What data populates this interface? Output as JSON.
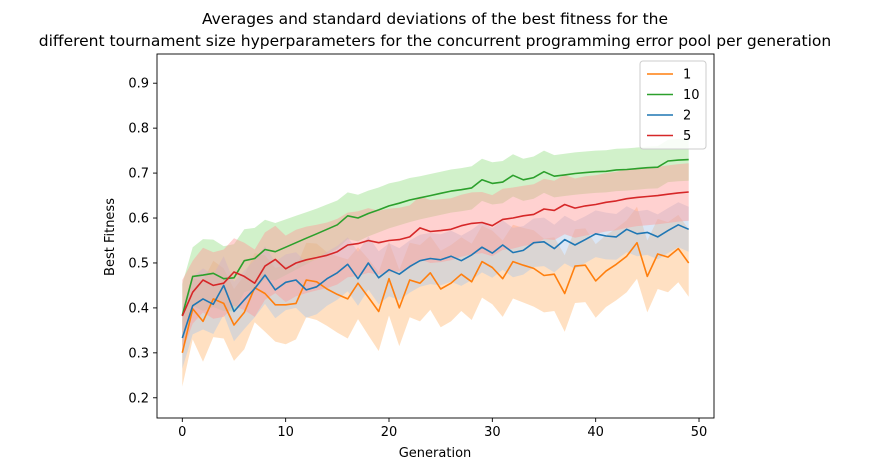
{
  "chart_data": {
    "type": "line",
    "title_line1": "Averages and standard deviations of the best fitness for the",
    "title_line2": "different tournament size hyperparameters for the concurrent programming error pool per generation",
    "xlabel": "Generation",
    "ylabel": "Best Fitness",
    "xlim": [
      -2.45,
      51.45
    ],
    "ylim": [
      0.155,
      0.965
    ],
    "xticks": [
      0,
      10,
      20,
      30,
      40,
      50
    ],
    "yticks": [
      0.2,
      0.3,
      0.4,
      0.5,
      0.6,
      0.7,
      0.8,
      0.9
    ],
    "legend_position": "top-right",
    "shaded_band": "mean ± std",
    "grid": false,
    "series": [
      {
        "name": "1",
        "color": "#ff7f0e",
        "band_color": "#ffbb78",
        "x": [
          0,
          1,
          2,
          3,
          4,
          5,
          6,
          7,
          8,
          9,
          10,
          11,
          12,
          13,
          14,
          15,
          16,
          17,
          18,
          19,
          20,
          21,
          22,
          23,
          24,
          25,
          26,
          27,
          28,
          29,
          30,
          31,
          32,
          33,
          34,
          35,
          36,
          37,
          38,
          39,
          40,
          41,
          42,
          43,
          44,
          45,
          46,
          47,
          48,
          49
        ],
        "mean": [
          0.3,
          0.398,
          0.37,
          0.42,
          0.41,
          0.362,
          0.39,
          0.445,
          0.432,
          0.407,
          0.407,
          0.41,
          0.462,
          0.458,
          0.442,
          0.43,
          0.42,
          0.455,
          0.424,
          0.392,
          0.465,
          0.4,
          0.462,
          0.455,
          0.478,
          0.442,
          0.455,
          0.475,
          0.458,
          0.503,
          0.49,
          0.465,
          0.503,
          0.495,
          0.488,
          0.472,
          0.475,
          0.432,
          0.493,
          0.495,
          0.46,
          0.482,
          0.497,
          0.515,
          0.545,
          0.47,
          0.52,
          0.513,
          0.532,
          0.5
        ],
        "std": [
          0.075,
          0.068,
          0.09,
          0.085,
          0.078,
          0.08,
          0.082,
          0.077,
          0.085,
          0.082,
          0.088,
          0.08,
          0.083,
          0.085,
          0.082,
          0.085,
          0.088,
          0.08,
          0.085,
          0.088,
          0.082,
          0.085,
          0.083,
          0.085,
          0.082,
          0.085,
          0.085,
          0.082,
          0.085,
          0.08,
          0.082,
          0.085,
          0.082,
          0.083,
          0.085,
          0.082,
          0.082,
          0.085,
          0.082,
          0.082,
          0.082,
          0.08,
          0.08,
          0.08,
          0.08,
          0.08,
          0.078,
          0.078,
          0.075,
          0.075
        ]
      },
      {
        "name": "10",
        "color": "#2ca02c",
        "band_color": "#98df8a",
        "x": [
          0,
          1,
          2,
          3,
          4,
          5,
          6,
          7,
          8,
          9,
          10,
          11,
          12,
          13,
          14,
          15,
          16,
          17,
          18,
          19,
          20,
          21,
          22,
          23,
          24,
          25,
          26,
          27,
          28,
          29,
          30,
          31,
          32,
          33,
          34,
          35,
          36,
          37,
          38,
          39,
          40,
          41,
          42,
          43,
          44,
          45,
          46,
          47,
          48,
          49
        ],
        "mean": [
          0.383,
          0.47,
          0.473,
          0.477,
          0.465,
          0.467,
          0.505,
          0.51,
          0.53,
          0.525,
          0.535,
          0.545,
          0.555,
          0.565,
          0.575,
          0.585,
          0.605,
          0.6,
          0.61,
          0.618,
          0.627,
          0.633,
          0.64,
          0.645,
          0.65,
          0.655,
          0.66,
          0.663,
          0.667,
          0.685,
          0.677,
          0.68,
          0.695,
          0.685,
          0.69,
          0.703,
          0.693,
          0.696,
          0.699,
          0.701,
          0.703,
          0.704,
          0.707,
          0.708,
          0.71,
          0.712,
          0.713,
          0.727,
          0.729,
          0.73
        ],
        "std": [
          0.07,
          0.065,
          0.08,
          0.075,
          0.072,
          0.075,
          0.07,
          0.068,
          0.066,
          0.064,
          0.062,
          0.06,
          0.058,
          0.056,
          0.055,
          0.054,
          0.052,
          0.052,
          0.051,
          0.05,
          0.05,
          0.049,
          0.049,
          0.048,
          0.048,
          0.048,
          0.048,
          0.048,
          0.048,
          0.047,
          0.047,
          0.047,
          0.047,
          0.047,
          0.047,
          0.047,
          0.047,
          0.047,
          0.047,
          0.047,
          0.047,
          0.047,
          0.047,
          0.047,
          0.047,
          0.047,
          0.047,
          0.047,
          0.047,
          0.047
        ]
      },
      {
        "name": "2",
        "color": "#1f77b4",
        "band_color": "#aec7e8",
        "x": [
          0,
          1,
          2,
          3,
          4,
          5,
          6,
          7,
          8,
          9,
          10,
          11,
          12,
          13,
          14,
          15,
          16,
          17,
          18,
          19,
          20,
          21,
          22,
          23,
          24,
          25,
          26,
          27,
          28,
          29,
          30,
          31,
          32,
          33,
          34,
          35,
          36,
          37,
          38,
          39,
          40,
          41,
          42,
          43,
          44,
          45,
          46,
          47,
          48,
          49
        ],
        "mean": [
          0.333,
          0.405,
          0.42,
          0.408,
          0.45,
          0.392,
          0.418,
          0.443,
          0.473,
          0.44,
          0.457,
          0.462,
          0.44,
          0.447,
          0.465,
          0.478,
          0.497,
          0.465,
          0.5,
          0.467,
          0.485,
          0.475,
          0.492,
          0.505,
          0.51,
          0.507,
          0.515,
          0.505,
          0.518,
          0.535,
          0.522,
          0.54,
          0.523,
          0.528,
          0.545,
          0.547,
          0.532,
          0.552,
          0.54,
          0.552,
          0.565,
          0.56,
          0.558,
          0.575,
          0.565,
          0.568,
          0.558,
          0.572,
          0.585,
          0.575
        ],
        "std": [
          0.068,
          0.064,
          0.068,
          0.066,
          0.065,
          0.066,
          0.065,
          0.064,
          0.064,
          0.063,
          0.062,
          0.062,
          0.062,
          0.061,
          0.06,
          0.06,
          0.06,
          0.06,
          0.059,
          0.059,
          0.059,
          0.058,
          0.058,
          0.058,
          0.057,
          0.057,
          0.057,
          0.056,
          0.056,
          0.056,
          0.055,
          0.055,
          0.055,
          0.054,
          0.054,
          0.054,
          0.053,
          0.053,
          0.053,
          0.052,
          0.052,
          0.052,
          0.051,
          0.051,
          0.05,
          0.05,
          0.05,
          0.05,
          0.05,
          0.05
        ]
      },
      {
        "name": "5",
        "color": "#d62728",
        "band_color": "#ff9896",
        "x": [
          0,
          1,
          2,
          3,
          4,
          5,
          6,
          7,
          8,
          9,
          10,
          11,
          12,
          13,
          14,
          15,
          16,
          17,
          18,
          19,
          20,
          21,
          22,
          23,
          24,
          25,
          26,
          27,
          28,
          29,
          30,
          31,
          32,
          33,
          34,
          35,
          36,
          37,
          38,
          39,
          40,
          41,
          42,
          43,
          44,
          45,
          46,
          47,
          48,
          49
        ],
        "mean": [
          0.382,
          0.435,
          0.462,
          0.45,
          0.455,
          0.48,
          0.47,
          0.455,
          0.493,
          0.508,
          0.487,
          0.5,
          0.507,
          0.512,
          0.517,
          0.525,
          0.54,
          0.543,
          0.55,
          0.545,
          0.55,
          0.552,
          0.558,
          0.578,
          0.57,
          0.572,
          0.575,
          0.583,
          0.588,
          0.59,
          0.583,
          0.597,
          0.6,
          0.605,
          0.608,
          0.62,
          0.617,
          0.63,
          0.622,
          0.627,
          0.63,
          0.635,
          0.638,
          0.643,
          0.646,
          0.648,
          0.65,
          0.653,
          0.656,
          0.658
        ],
        "std": [
          0.08,
          0.07,
          0.072,
          0.074,
          0.075,
          0.075,
          0.075,
          0.075,
          0.075,
          0.075,
          0.074,
          0.074,
          0.074,
          0.073,
          0.073,
          0.073,
          0.072,
          0.072,
          0.072,
          0.071,
          0.071,
          0.071,
          0.07,
          0.07,
          0.07,
          0.07,
          0.069,
          0.069,
          0.069,
          0.068,
          0.068,
          0.068,
          0.068,
          0.067,
          0.067,
          0.067,
          0.066,
          0.066,
          0.066,
          0.066,
          0.065,
          0.065,
          0.065,
          0.065,
          0.064,
          0.064,
          0.064,
          0.064,
          0.064,
          0.064
        ]
      }
    ]
  }
}
